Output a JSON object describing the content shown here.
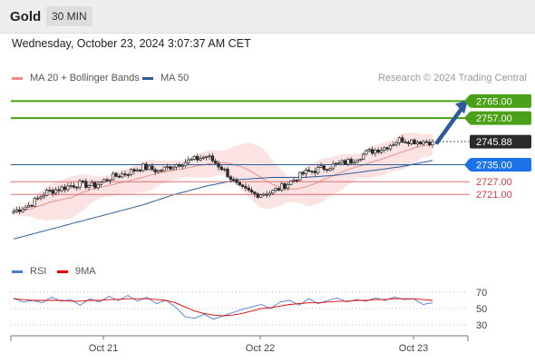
{
  "header": {
    "symbol": "Gold",
    "timeframe": "30 MIN"
  },
  "datetime": "Wednesday, October 23, 2024 3:07:37 AM CET",
  "legend": [
    {
      "label": "MA 20 + Bollinger Bands",
      "color": "#f28b82"
    },
    {
      "label": "MA 50",
      "color": "#2c5d9a"
    }
  ],
  "credit": "Research © 2024 Trading Central",
  "rsi_legend": [
    {
      "label": "RSI",
      "color": "#4a7fd0"
    },
    {
      "label": "9MA",
      "color": "#e00000"
    }
  ],
  "colors": {
    "resistance": "#4aa016",
    "last": "#2b2b2b",
    "pivot": "#1a73e8",
    "support": "#d93c3c",
    "arrow": "#2c5d9a"
  },
  "chart_data": [
    {
      "type": "candlestick",
      "ylim": [
        2695,
        2772
      ],
      "last_price": 2745.88,
      "x_ticks": [
        "Oct 21",
        "Oct 22",
        "Oct 23"
      ],
      "levels": [
        {
          "value": 2765.0,
          "label": "2765.00",
          "kind": "resistance"
        },
        {
          "value": 2757.0,
          "label": "2757.00",
          "kind": "resistance"
        },
        {
          "value": 2745.88,
          "label": "2745.88",
          "kind": "last"
        },
        {
          "value": 2735.0,
          "label": "2735.00",
          "kind": "pivot"
        },
        {
          "value": 2727.0,
          "label": "2727.00",
          "kind": "support"
        },
        {
          "value": 2721.0,
          "label": "2721.00",
          "kind": "support"
        }
      ],
      "price_anchors": [
        2713,
        2716,
        2722,
        2724,
        2726,
        2725,
        2729,
        2731,
        2734,
        2732,
        2735,
        2737,
        2739,
        2733,
        2724,
        2721,
        2722,
        2726,
        2731,
        2733,
        2735,
        2737,
        2741,
        2743,
        2747,
        2746,
        2745.88
      ],
      "ma50_anchors": [
        2700,
        2704,
        2708,
        2712,
        2716,
        2721,
        2725,
        2728,
        2729,
        2729,
        2730,
        2732,
        2734,
        2737
      ],
      "series": [
        {
          "name": "MA 20 + Bollinger Bands"
        },
        {
          "name": "MA 50"
        }
      ]
    },
    {
      "type": "line",
      "ylim": [
        20,
        80
      ],
      "y_ticks": [
        70,
        50,
        30
      ],
      "series": [
        {
          "name": "RSI",
          "values": [
            63,
            58,
            60,
            57,
            64,
            59,
            61,
            54,
            62,
            58,
            65,
            60,
            66,
            59,
            64,
            56,
            60,
            52,
            40,
            38,
            43,
            37,
            41,
            45,
            49,
            52,
            55,
            50,
            58,
            60,
            54,
            62,
            56,
            60,
            63,
            58,
            61,
            59,
            63,
            60,
            64,
            61,
            62,
            55,
            57
          ]
        },
        {
          "name": "9MA",
          "values": [
            62,
            61,
            60,
            60,
            60,
            60,
            59,
            59,
            60,
            60,
            61,
            61,
            62,
            62,
            62,
            61,
            60,
            57,
            52,
            47,
            44,
            42,
            41,
            42,
            44,
            47,
            50,
            51,
            53,
            55,
            56,
            57,
            57,
            58,
            59,
            59,
            60,
            60,
            61,
            61,
            62,
            62,
            62,
            61,
            60
          ]
        }
      ]
    }
  ]
}
